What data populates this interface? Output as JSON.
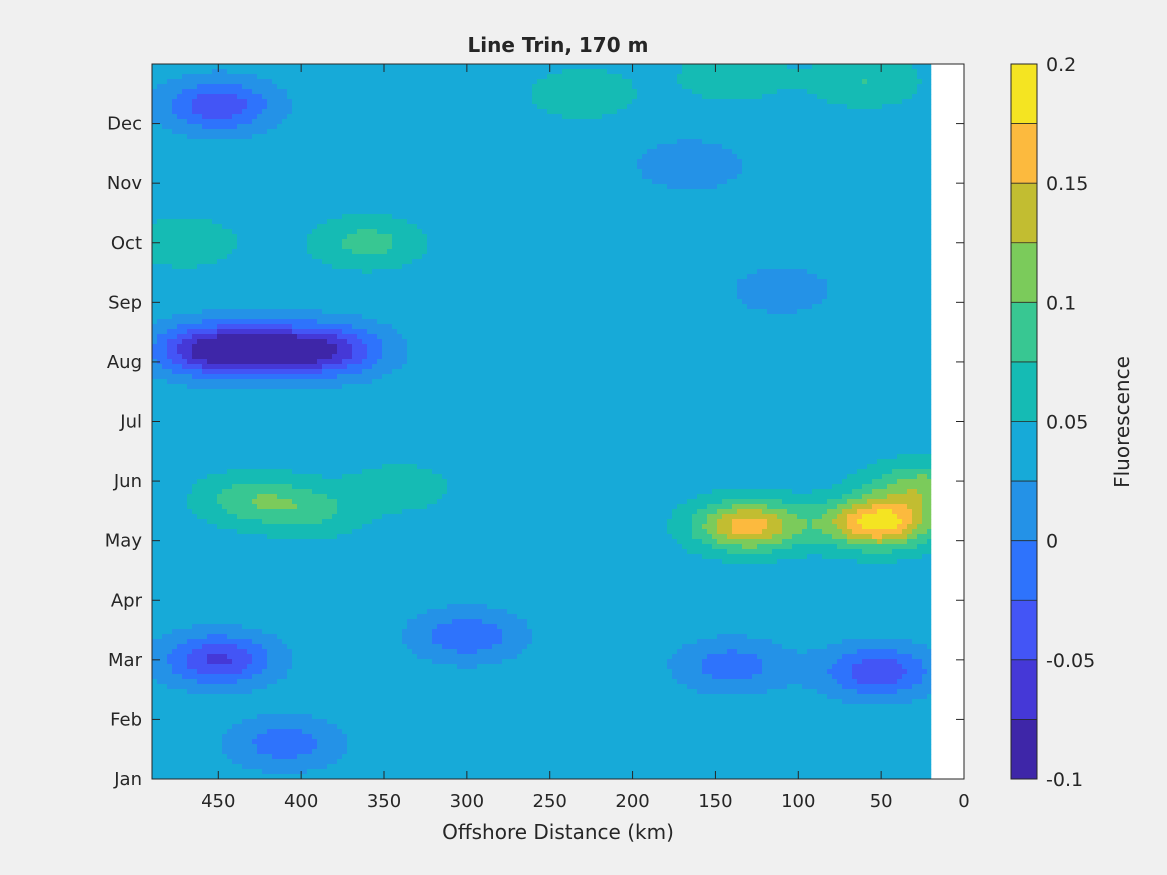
{
  "chart_data": {
    "type": "heatmap",
    "subtype": "filled-contour",
    "title": "Line Trin, 170 m",
    "xlabel": "Offshore Distance (km)",
    "ylabel": "",
    "x_direction": "reversed",
    "xlim": [
      0,
      490
    ],
    "x_ticks": [
      450,
      400,
      350,
      300,
      250,
      200,
      150,
      100,
      50,
      0
    ],
    "y_ticks": [
      "Jan",
      "Feb",
      "Mar",
      "Apr",
      "May",
      "Jun",
      "Jul",
      "Aug",
      "Sep",
      "Oct",
      "Nov",
      "Dec"
    ],
    "y_range_months": [
      1,
      13
    ],
    "data_x_range": [
      20,
      490
    ],
    "grid": false,
    "colorbar": {
      "label": "Fluorescence",
      "limits": [
        -0.1,
        0.2
      ],
      "tick_labels": [
        "-0.1",
        "-0.05",
        "0",
        "0.05",
        "0.1",
        "0.15",
        "0.2"
      ],
      "tick_values": [
        -0.1,
        -0.05,
        0,
        0.05,
        0.1,
        0.15,
        0.2
      ],
      "level_step": 0.025,
      "colors": [
        "#3e26a8",
        "#4538d7",
        "#4355f6",
        "#2e73fc",
        "#2492e7",
        "#17aad8",
        "#15bbb4",
        "#38c792",
        "#7bcb5b",
        "#c2bd31",
        "#fcba3e",
        "#f4e422"
      ]
    },
    "background_value": 0.0375,
    "features": [
      {
        "name": "Aug low offshore",
        "x": 455,
        "month": 8.2,
        "value": -0.085
      },
      {
        "name": "Aug low mid",
        "x": 415,
        "month": 8.2,
        "value": -0.065
      },
      {
        "name": "Aug low inner",
        "x": 380,
        "month": 8.2,
        "value": -0.05
      },
      {
        "name": "Dec low",
        "x": 450,
        "month": 12.3,
        "value": -0.045
      },
      {
        "name": "Mar low",
        "x": 450,
        "month": 3.0,
        "value": -0.055
      },
      {
        "name": "Apr-Mar band",
        "x": 300,
        "month": 3.4,
        "value": -0.02
      },
      {
        "name": "Jan-Feb low",
        "x": 410,
        "month": 1.6,
        "value": -0.015
      },
      {
        "name": "Oct high",
        "x": 360,
        "month": 10.0,
        "value": 0.085
      },
      {
        "name": "Oct high offshore",
        "x": 470,
        "month": 10.0,
        "value": 0.07
      },
      {
        "name": "May-Jun high",
        "x": 430,
        "month": 5.7,
        "value": 0.09
      },
      {
        "name": "May high mid",
        "x": 395,
        "month": 5.5,
        "value": 0.08
      },
      {
        "name": "Jun high inner",
        "x": 340,
        "month": 5.9,
        "value": 0.065
      },
      {
        "name": "Dec high",
        "x": 230,
        "month": 12.5,
        "value": 0.07
      },
      {
        "name": "Nov-Dec low",
        "x": 165,
        "month": 11.3,
        "value": 0.005
      },
      {
        "name": "Aug-Sep low",
        "x": 110,
        "month": 9.2,
        "value": 0.01
      },
      {
        "name": "Mar-Apr low",
        "x": 140,
        "month": 2.9,
        "value": -0.015
      },
      {
        "name": "Mar low near shore",
        "x": 52,
        "month": 2.8,
        "value": -0.045
      },
      {
        "name": "May spot 130 km",
        "x": 130,
        "month": 5.25,
        "value": 0.165
      },
      {
        "name": "May spot 50 km",
        "x": 52,
        "month": 5.3,
        "value": 0.19
      },
      {
        "name": "May coastal",
        "x": 25,
        "month": 5.9,
        "value": 0.11
      },
      {
        "name": "Dec high near shore",
        "x": 60,
        "month": 12.7,
        "value": 0.075
      },
      {
        "name": "Dec high 140 km",
        "x": 140,
        "month": 12.8,
        "value": 0.07
      }
    ]
  }
}
